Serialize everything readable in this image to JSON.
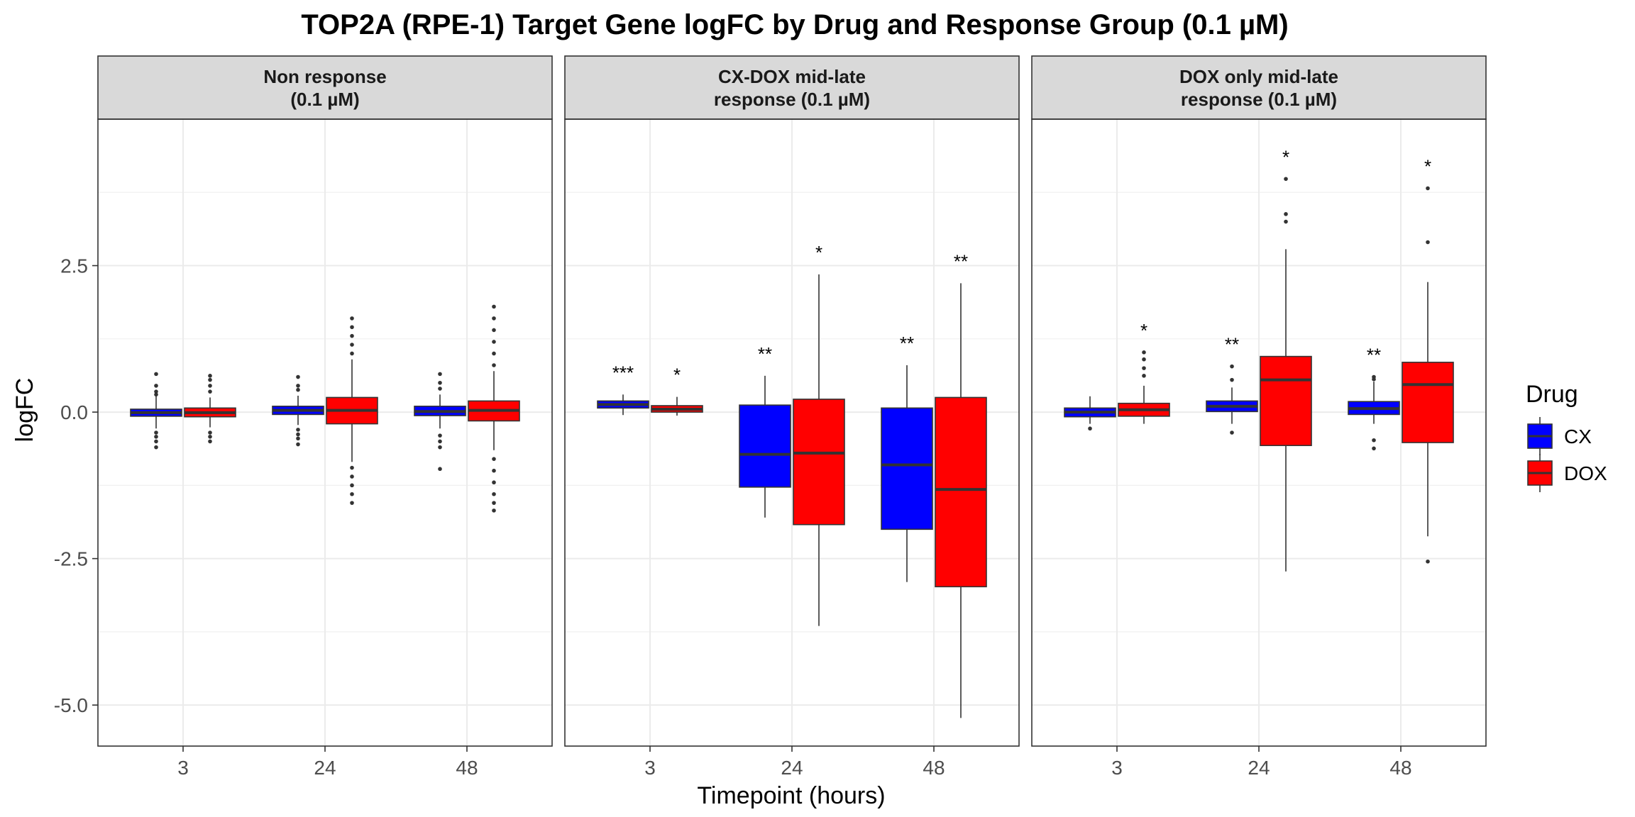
{
  "chart_data": {
    "type": "box",
    "title": "TOP2A (RPE-1) Target Gene logFC by Drug and Response Group (0.1 µM)",
    "xlabel": "Timepoint (hours)",
    "ylabel": "logFC",
    "ylim": [
      -5.7,
      5.0
    ],
    "yticks": [
      -5.0,
      -2.5,
      0.0,
      2.5
    ],
    "ytick_labels": [
      "-5.0",
      "-2.5",
      "0.0",
      "2.5"
    ],
    "categories": [
      "3",
      "24",
      "48"
    ],
    "grid": true,
    "legend": {
      "title": "Drug",
      "position": "right",
      "entries": [
        {
          "name": "CX",
          "color": "#0000FF"
        },
        {
          "name": "DOX",
          "color": "#FF0000"
        }
      ]
    },
    "facets": [
      {
        "label": "Non response\n(0.1 µM)",
        "groups": [
          {
            "timepoint": "3",
            "series": "CX",
            "q1": -0.07,
            "median": -0.01,
            "q3": 0.05,
            "whisker_low": -0.28,
            "whisker_high": 0.27,
            "outliers": [
              0.65,
              0.45,
              0.35,
              0.3,
              -0.35,
              -0.42,
              -0.5,
              -0.6
            ],
            "sig": ""
          },
          {
            "timepoint": "3",
            "series": "DOX",
            "q1": -0.08,
            "median": -0.01,
            "q3": 0.07,
            "whisker_low": -0.26,
            "whisker_high": 0.25,
            "outliers": [
              0.62,
              0.55,
              0.45,
              0.35,
              -0.35,
              -0.42,
              -0.5
            ],
            "sig": ""
          },
          {
            "timepoint": "24",
            "series": "CX",
            "q1": -0.04,
            "median": 0.03,
            "q3": 0.1,
            "whisker_low": -0.22,
            "whisker_high": 0.28,
            "outliers": [
              0.6,
              0.45,
              0.38,
              -0.3,
              -0.38,
              -0.45,
              -0.55
            ],
            "sig": ""
          },
          {
            "timepoint": "24",
            "series": "DOX",
            "q1": -0.2,
            "median": 0.03,
            "q3": 0.25,
            "whisker_low": -0.85,
            "whisker_high": 0.9,
            "outliers": [
              1.6,
              1.45,
              1.3,
              1.15,
              1.0,
              -0.95,
              -1.1,
              -1.25,
              -1.4,
              -1.55
            ],
            "sig": ""
          },
          {
            "timepoint": "48",
            "series": "CX",
            "q1": -0.06,
            "median": 0.01,
            "q3": 0.1,
            "whisker_low": -0.28,
            "whisker_high": 0.3,
            "outliers": [
              0.65,
              0.5,
              0.4,
              -0.4,
              -0.5,
              -0.6,
              -0.97
            ],
            "sig": ""
          },
          {
            "timepoint": "48",
            "series": "DOX",
            "q1": -0.15,
            "median": 0.03,
            "q3": 0.19,
            "whisker_low": -0.65,
            "whisker_high": 0.7,
            "outliers": [
              1.8,
              1.6,
              1.4,
              1.2,
              1.0,
              0.8,
              -0.8,
              -1.0,
              -1.2,
              -1.4,
              -1.55,
              -1.68
            ],
            "sig": ""
          }
        ]
      },
      {
        "label": "CX-DOX mid-late\nresponse (0.1 µM)",
        "groups": [
          {
            "timepoint": "3",
            "series": "CX",
            "q1": 0.07,
            "median": 0.13,
            "q3": 0.19,
            "whisker_low": -0.05,
            "whisker_high": 0.3,
            "outliers": [],
            "sig": "***"
          },
          {
            "timepoint": "3",
            "series": "DOX",
            "q1": 0.0,
            "median": 0.05,
            "q3": 0.11,
            "whisker_low": -0.06,
            "whisker_high": 0.26,
            "outliers": [],
            "sig": "*"
          },
          {
            "timepoint": "24",
            "series": "CX",
            "q1": -1.28,
            "median": -0.72,
            "q3": 0.12,
            "whisker_low": -1.8,
            "whisker_high": 0.62,
            "outliers": [],
            "sig": "**"
          },
          {
            "timepoint": "24",
            "series": "DOX",
            "q1": -1.92,
            "median": -0.7,
            "q3": 0.22,
            "whisker_low": -3.65,
            "whisker_high": 2.35,
            "outliers": [],
            "sig": "*"
          },
          {
            "timepoint": "48",
            "series": "CX",
            "q1": -2.0,
            "median": -0.9,
            "q3": 0.07,
            "whisker_low": -2.9,
            "whisker_high": 0.8,
            "outliers": [],
            "sig": "**"
          },
          {
            "timepoint": "48",
            "series": "DOX",
            "q1": -2.98,
            "median": -1.32,
            "q3": 0.25,
            "whisker_low": -5.22,
            "whisker_high": 2.2,
            "outliers": [],
            "sig": "**"
          }
        ]
      },
      {
        "label": "DOX only mid-late\nresponse (0.1 µM)",
        "groups": [
          {
            "timepoint": "3",
            "series": "CX",
            "q1": -0.08,
            "median": 0.0,
            "q3": 0.07,
            "whisker_low": -0.2,
            "whisker_high": 0.27,
            "outliers": [
              -0.28
            ],
            "sig": ""
          },
          {
            "timepoint": "3",
            "series": "DOX",
            "q1": -0.07,
            "median": 0.04,
            "q3": 0.15,
            "whisker_low": -0.2,
            "whisker_high": 0.45,
            "outliers": [
              1.02,
              0.9,
              0.75,
              0.62
            ],
            "sig": "*"
          },
          {
            "timepoint": "24",
            "series": "CX",
            "q1": 0.01,
            "median": 0.1,
            "q3": 0.19,
            "whisker_low": -0.2,
            "whisker_high": 0.42,
            "outliers": [
              0.78,
              0.55,
              -0.35
            ],
            "sig": "**"
          },
          {
            "timepoint": "24",
            "series": "DOX",
            "q1": -0.57,
            "median": 0.55,
            "q3": 0.95,
            "whisker_low": -2.72,
            "whisker_high": 2.78,
            "outliers": [
              3.98,
              3.38,
              3.25
            ],
            "sig": "*"
          },
          {
            "timepoint": "48",
            "series": "CX",
            "q1": -0.04,
            "median": 0.06,
            "q3": 0.18,
            "whisker_low": -0.2,
            "whisker_high": 0.52,
            "outliers": [
              0.6,
              0.56,
              -0.48,
              -0.62
            ],
            "sig": "**"
          },
          {
            "timepoint": "48",
            "series": "DOX",
            "q1": -0.52,
            "median": 0.47,
            "q3": 0.85,
            "whisker_low": -2.12,
            "whisker_high": 2.22,
            "outliers": [
              3.82,
              2.9,
              -2.55
            ],
            "sig": "*"
          }
        ]
      }
    ]
  }
}
